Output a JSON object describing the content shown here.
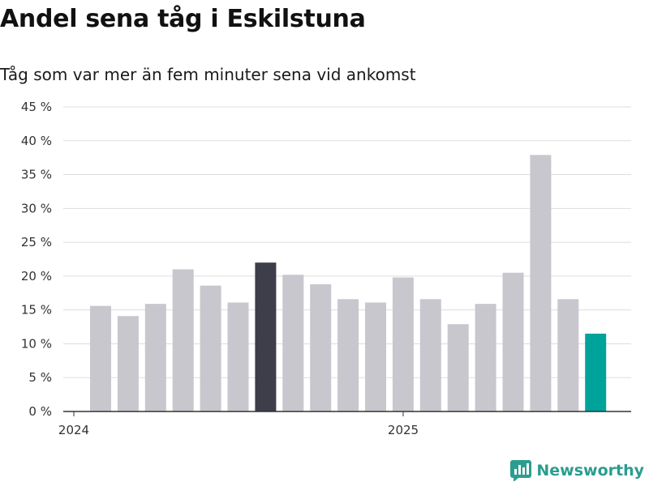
{
  "title": "Andel sena tåg i Eskilstuna",
  "subtitle": "Tåg som var mer än fem minuter sena vid ankomst",
  "brand": "Newsworthy",
  "colors": {
    "bar_default": "#c8c7ce",
    "bar_highlight": "#3e3d4a",
    "bar_latest": "#00a39a",
    "grid": "#dddddd",
    "axis": "#333333",
    "brand": "#2a9d8f"
  },
  "chart_data": {
    "type": "bar",
    "title": "Andel sena tåg i Eskilstuna",
    "subtitle": "Tåg som var mer än fem minuter sena vid ankomst",
    "xlabel": "",
    "ylabel": "",
    "ylim": [
      0,
      45
    ],
    "yticks": [
      0,
      5,
      10,
      15,
      20,
      25,
      30,
      35,
      40,
      45
    ],
    "ytick_labels": [
      "0 %",
      "5 %",
      "10 %",
      "15 %",
      "20 %",
      "25 %",
      "30 %",
      "35 %",
      "40 %",
      "45 %"
    ],
    "x_tick_labels": [
      {
        "label": "2024",
        "at_index": 0
      },
      {
        "label": "2025",
        "at_index": 12
      }
    ],
    "grid": true,
    "legend": "none",
    "values": [
      15.6,
      14.1,
      15.9,
      21.0,
      18.6,
      16.1,
      22.0,
      20.2,
      18.8,
      16.6,
      16.1,
      19.8,
      16.6,
      12.9,
      15.9,
      20.5,
      37.9,
      16.6,
      11.5
    ],
    "highlight_indices": [
      6
    ],
    "latest_index": 18
  }
}
